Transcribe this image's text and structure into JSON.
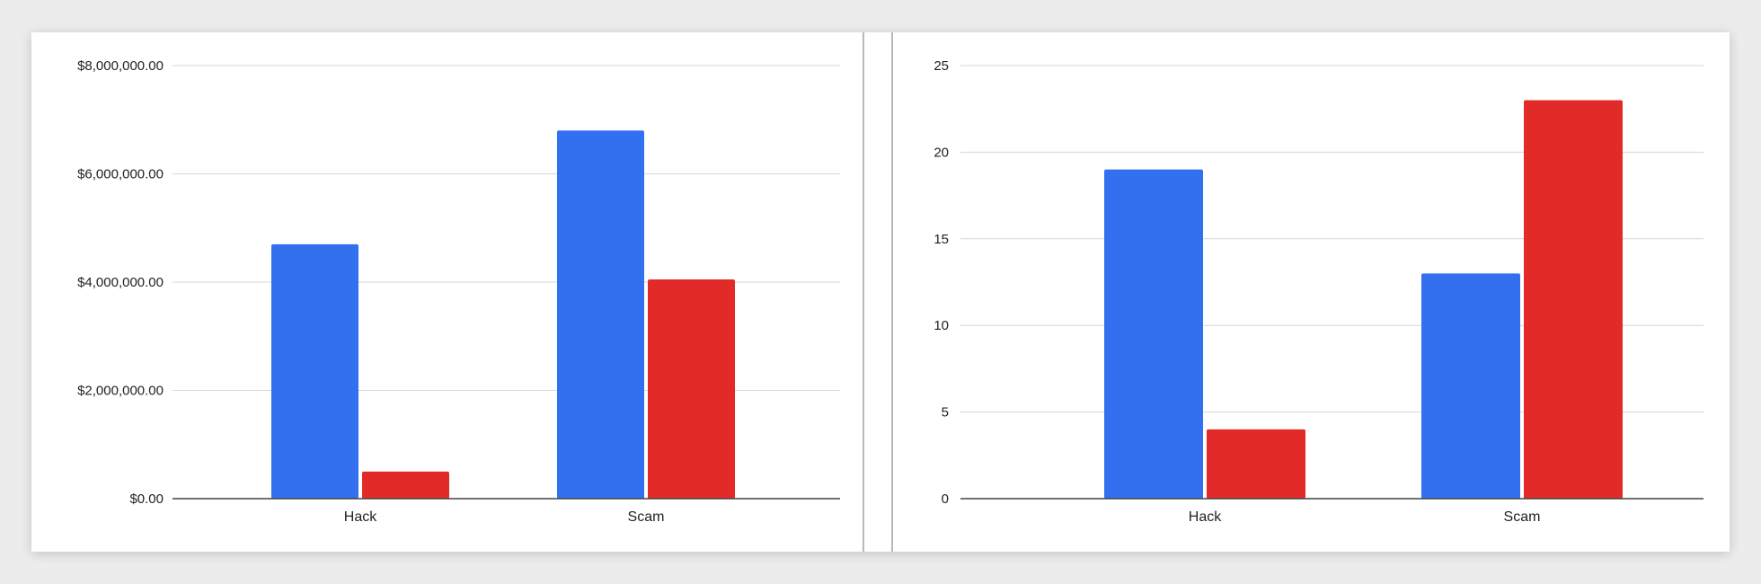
{
  "colors": {
    "series1": "#3370f0",
    "series2": "#e22b28",
    "grid": "#d6d6d6",
    "axis": "#444444"
  },
  "chart_data": [
    {
      "type": "bar",
      "title": "",
      "xlabel": "",
      "ylabel": "",
      "categories": [
        "Hack",
        "Scam"
      ],
      "series": [
        {
          "values": [
            4700000,
            6800000
          ]
        },
        {
          "values": [
            500000,
            4050000
          ]
        }
      ],
      "ylim": [
        0,
        8000000
      ],
      "yticks": [
        0,
        2000000,
        4000000,
        6000000,
        8000000
      ],
      "ytick_labels": [
        "$0.00",
        "$2,000,000.00",
        "$4,000,000.00",
        "$6,000,000.00",
        "$8,000,000.00"
      ],
      "grid": true,
      "legend": "none"
    },
    {
      "type": "bar",
      "title": "",
      "xlabel": "",
      "ylabel": "",
      "categories": [
        "Hack",
        "Scam"
      ],
      "series": [
        {
          "values": [
            19,
            13
          ]
        },
        {
          "values": [
            4,
            23
          ]
        }
      ],
      "ylim": [
        0,
        25
      ],
      "yticks": [
        0,
        5,
        10,
        15,
        20,
        25
      ],
      "ytick_labels": [
        "0",
        "5",
        "10",
        "15",
        "20",
        "25"
      ],
      "grid": true,
      "legend": "none"
    }
  ]
}
